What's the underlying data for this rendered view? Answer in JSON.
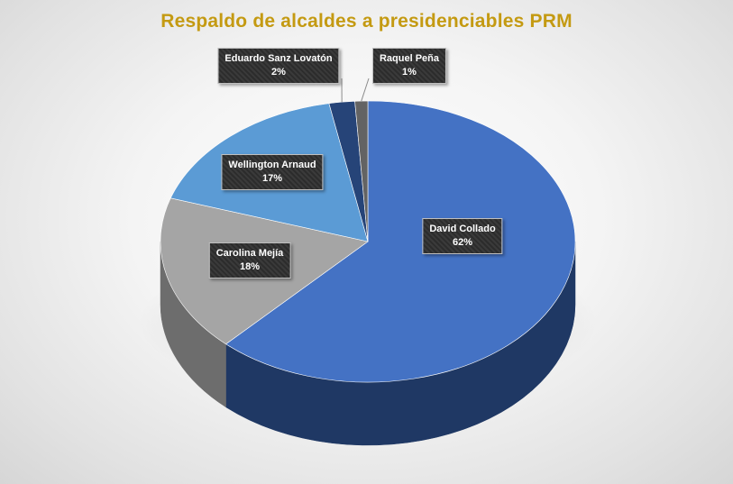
{
  "chart_data": {
    "type": "pie",
    "title": "Respaldo de alcaldes a presidenciables PRM",
    "categories": [
      "David Collado",
      "Carolina Mejía",
      "Wellington Arnaud",
      "Eduardo Sanz Lovatón",
      "Raquel Peña"
    ],
    "values": [
      62,
      18,
      17,
      2,
      1
    ],
    "value_labels": [
      "62%",
      "18%",
      "17%",
      "2%",
      "1%"
    ],
    "colors": [
      "#4472c4",
      "#a5a5a5",
      "#5b9bd5",
      "#264478",
      "#636363"
    ],
    "side_colors": [
      "#1f3864",
      "#6d6d6d",
      "#2e6aa0",
      "#142640",
      "#3a3a3a"
    ],
    "style": "3d",
    "legend": "none"
  }
}
